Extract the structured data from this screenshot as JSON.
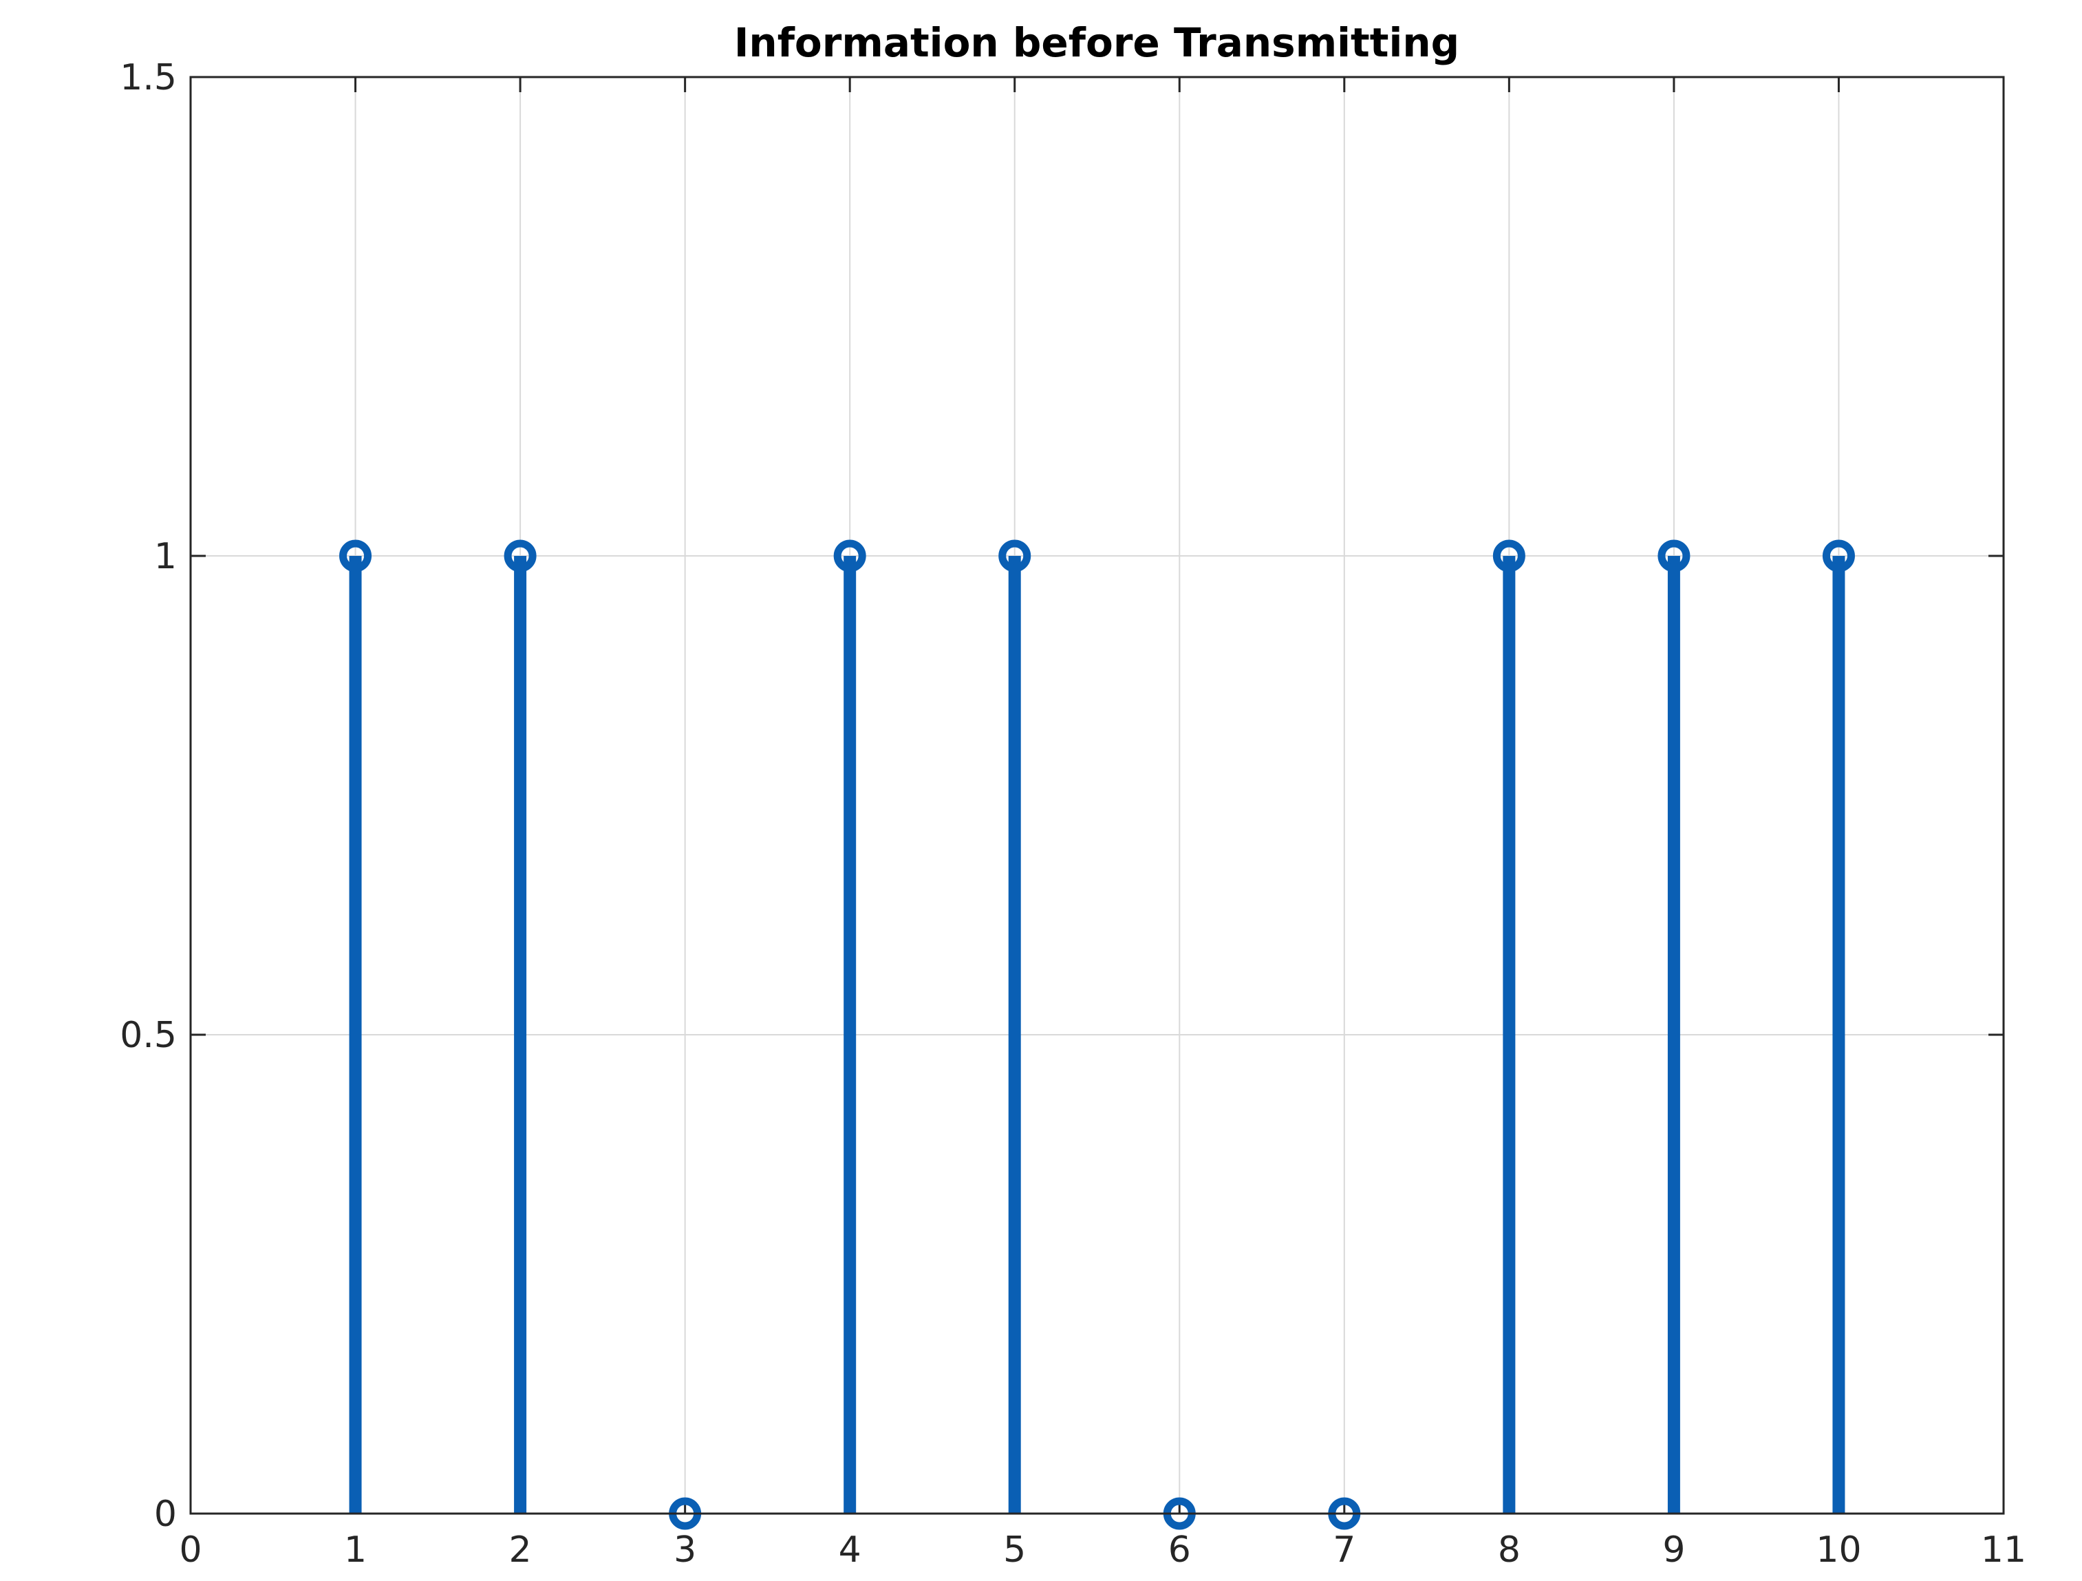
{
  "chart_data": {
    "type": "stem",
    "title": "Information before Transmitting",
    "xlabel": "",
    "ylabel": "",
    "xlim": [
      0,
      11
    ],
    "ylim": [
      0,
      1.5
    ],
    "x_ticks": [
      0,
      1,
      2,
      3,
      4,
      5,
      6,
      7,
      8,
      9,
      10,
      11
    ],
    "x_tick_labels": [
      "0",
      "1",
      "2",
      "3",
      "4",
      "5",
      "6",
      "7",
      "8",
      "9",
      "10",
      "11"
    ],
    "y_ticks": [
      0,
      0.5,
      1,
      1.5
    ],
    "y_tick_labels": [
      "0",
      "0.5",
      "1",
      "1.5"
    ],
    "grid": true,
    "series": [
      {
        "x": [
          1,
          2,
          3,
          4,
          5,
          6,
          7,
          8,
          9,
          10
        ],
        "values": [
          1,
          1,
          0,
          1,
          1,
          0,
          0,
          1,
          1,
          1
        ],
        "color": "#0a5fb4",
        "marker": "circle"
      }
    ],
    "colors": {
      "stem": "#0a5fb4",
      "grid": "#d9d9d9",
      "axis": "#262626"
    }
  }
}
